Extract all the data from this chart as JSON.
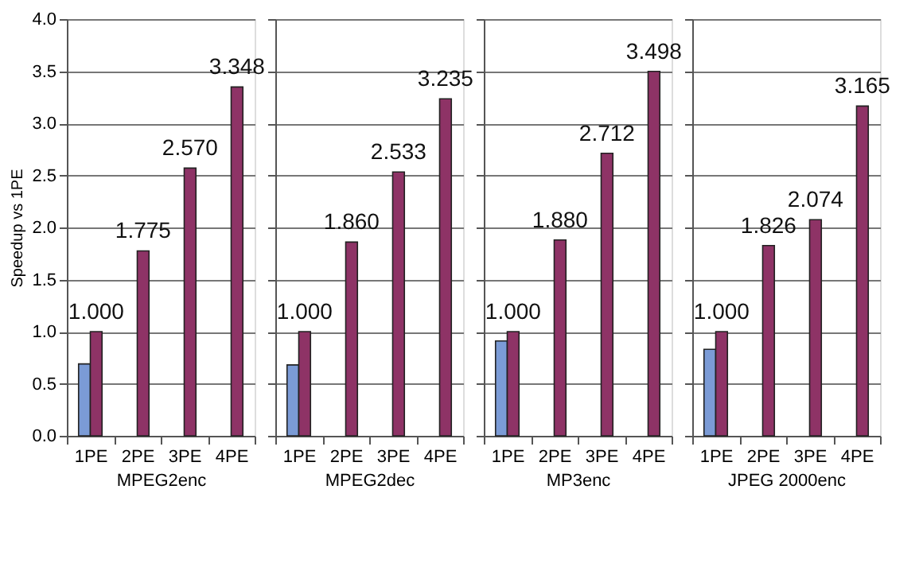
{
  "chart_data": [
    {
      "type": "bar",
      "categories": [
        "1PE",
        "2PE",
        "3PE",
        "4PE"
      ],
      "xlabel": "MPEG2enc",
      "ylabel": "Speedup vs 1PE",
      "ylim": [
        0,
        4
      ],
      "yticks": [
        {
          "value": 0,
          "label": "0.0"
        },
        {
          "value": 0.5,
          "label": "0.5"
        },
        {
          "value": 1,
          "label": "1.0"
        },
        {
          "value": 1.5,
          "label": "1.5"
        },
        {
          "value": 2,
          "label": "2.0"
        },
        {
          "value": 2.5,
          "label": "2.5"
        },
        {
          "value": 3,
          "label": "3.0"
        },
        {
          "value": 3.5,
          "label": "3.5"
        },
        {
          "value": 4,
          "label": "4.0"
        }
      ],
      "grid": "y",
      "legend": false,
      "series": [
        {
          "color": "#7b9bd6",
          "values": [
            0.69,
            null,
            null,
            null
          ]
        },
        {
          "color": "#8e3366",
          "values": [
            1.0,
            1.775,
            2.57,
            3.348
          ],
          "value_labels": [
            "1.000",
            "1.775",
            "2.570",
            "3.348"
          ]
        }
      ]
    },
    {
      "type": "bar",
      "categories": [
        "1PE",
        "2PE",
        "3PE",
        "4PE"
      ],
      "xlabel": "MPEG2dec",
      "ylim": [
        0,
        4
      ],
      "yticks": [
        {
          "value": 0,
          "label": null
        },
        {
          "value": 0.5,
          "label": null
        },
        {
          "value": 1,
          "label": null
        },
        {
          "value": 1.5,
          "label": null
        },
        {
          "value": 2,
          "label": null
        },
        {
          "value": 2.5,
          "label": null
        },
        {
          "value": 3,
          "label": null
        },
        {
          "value": 3.5,
          "label": null
        },
        {
          "value": 4,
          "label": null
        }
      ],
      "grid": "y",
      "legend": false,
      "tick_labels": "x",
      "series": [
        {
          "color": "#7b9bd6",
          "values": [
            0.68,
            null,
            null,
            null
          ]
        },
        {
          "color": "#8e3366",
          "values": [
            1.0,
            1.86,
            2.533,
            3.235
          ],
          "value_labels": [
            "1.000",
            "1.860",
            "2.533",
            "3.235"
          ]
        }
      ]
    },
    {
      "type": "bar",
      "categories": [
        "1PE",
        "2PE",
        "3PE",
        "4PE"
      ],
      "xlabel": "MP3enc",
      "ylim": [
        0,
        4
      ],
      "yticks": [
        {
          "value": 0,
          "label": null
        },
        {
          "value": 0.5,
          "label": null
        },
        {
          "value": 1,
          "label": null
        },
        {
          "value": 1.5,
          "label": null
        },
        {
          "value": 2,
          "label": null
        },
        {
          "value": 2.5,
          "label": null
        },
        {
          "value": 3,
          "label": null
        },
        {
          "value": 3.5,
          "label": null
        },
        {
          "value": 4,
          "label": null
        }
      ],
      "grid": "y",
      "legend": false,
      "tick_labels": "x",
      "series": [
        {
          "color": "#7b9bd6",
          "values": [
            0.91,
            null,
            null,
            null
          ]
        },
        {
          "color": "#8e3366",
          "values": [
            1.0,
            1.88,
            2.712,
            3.498
          ],
          "value_labels": [
            "1.000",
            "1.880",
            "2.712",
            "3.498"
          ]
        }
      ]
    },
    {
      "type": "bar",
      "categories": [
        "1PE",
        "2PE",
        "3PE",
        "4PE"
      ],
      "xlabel": "JPEG 2000enc",
      "ylim": [
        0,
        4
      ],
      "yticks": [
        {
          "value": 0,
          "label": null
        },
        {
          "value": 0.5,
          "label": null
        },
        {
          "value": 1,
          "label": null
        },
        {
          "value": 1.5,
          "label": null
        },
        {
          "value": 2,
          "label": null
        },
        {
          "value": 2.5,
          "label": null
        },
        {
          "value": 3,
          "label": null
        },
        {
          "value": 3.5,
          "label": null
        },
        {
          "value": 4,
          "label": null
        }
      ],
      "grid": "y",
      "legend": false,
      "tick_labels": "x",
      "series": [
        {
          "color": "#7b9bd6",
          "values": [
            0.83,
            null,
            null,
            null
          ]
        },
        {
          "color": "#8e3366",
          "values": [
            1.0,
            1.826,
            2.074,
            3.165
          ],
          "value_labels": [
            "1.000",
            "1.826",
            "2.074",
            "3.165"
          ]
        }
      ]
    }
  ]
}
